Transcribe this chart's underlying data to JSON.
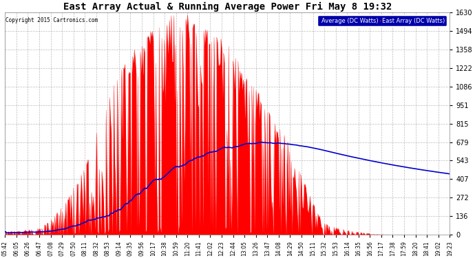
{
  "title": "East Array Actual & Running Average Power Fri May 8 19:32",
  "copyright": "Copyright 2015 Cartronics.com",
  "legend_blue": "Average (DC Watts)",
  "legend_red": "East Array (DC Watts)",
  "y_ticks": [
    0.0,
    135.8,
    271.6,
    407.4,
    543.3,
    679.1,
    814.9,
    950.7,
    1086.5,
    1222.3,
    1358.1,
    1494.0,
    1629.8
  ],
  "ylim": [
    0.0,
    1629.8
  ],
  "bg_color": "#ffffff",
  "plot_bg_color": "#ffffff",
  "red_color": "#ff0000",
  "blue_color": "#0000cc",
  "title_color": "#000000",
  "tick_color": "#000000",
  "grid_color": "#aaaaaa",
  "x_labels": [
    "05:42",
    "06:05",
    "06:26",
    "06:47",
    "07:08",
    "07:29",
    "07:50",
    "08:11",
    "08:32",
    "08:53",
    "09:14",
    "09:35",
    "09:56",
    "10:17",
    "10:38",
    "10:59",
    "11:20",
    "11:41",
    "12:02",
    "12:23",
    "12:44",
    "13:05",
    "13:26",
    "13:47",
    "14:08",
    "14:29",
    "14:50",
    "15:11",
    "15:32",
    "15:53",
    "16:14",
    "16:35",
    "16:56",
    "17:17",
    "17:38",
    "17:59",
    "18:20",
    "18:41",
    "19:02",
    "19:23"
  ],
  "n_points": 520,
  "peak_watts": 1629.8
}
